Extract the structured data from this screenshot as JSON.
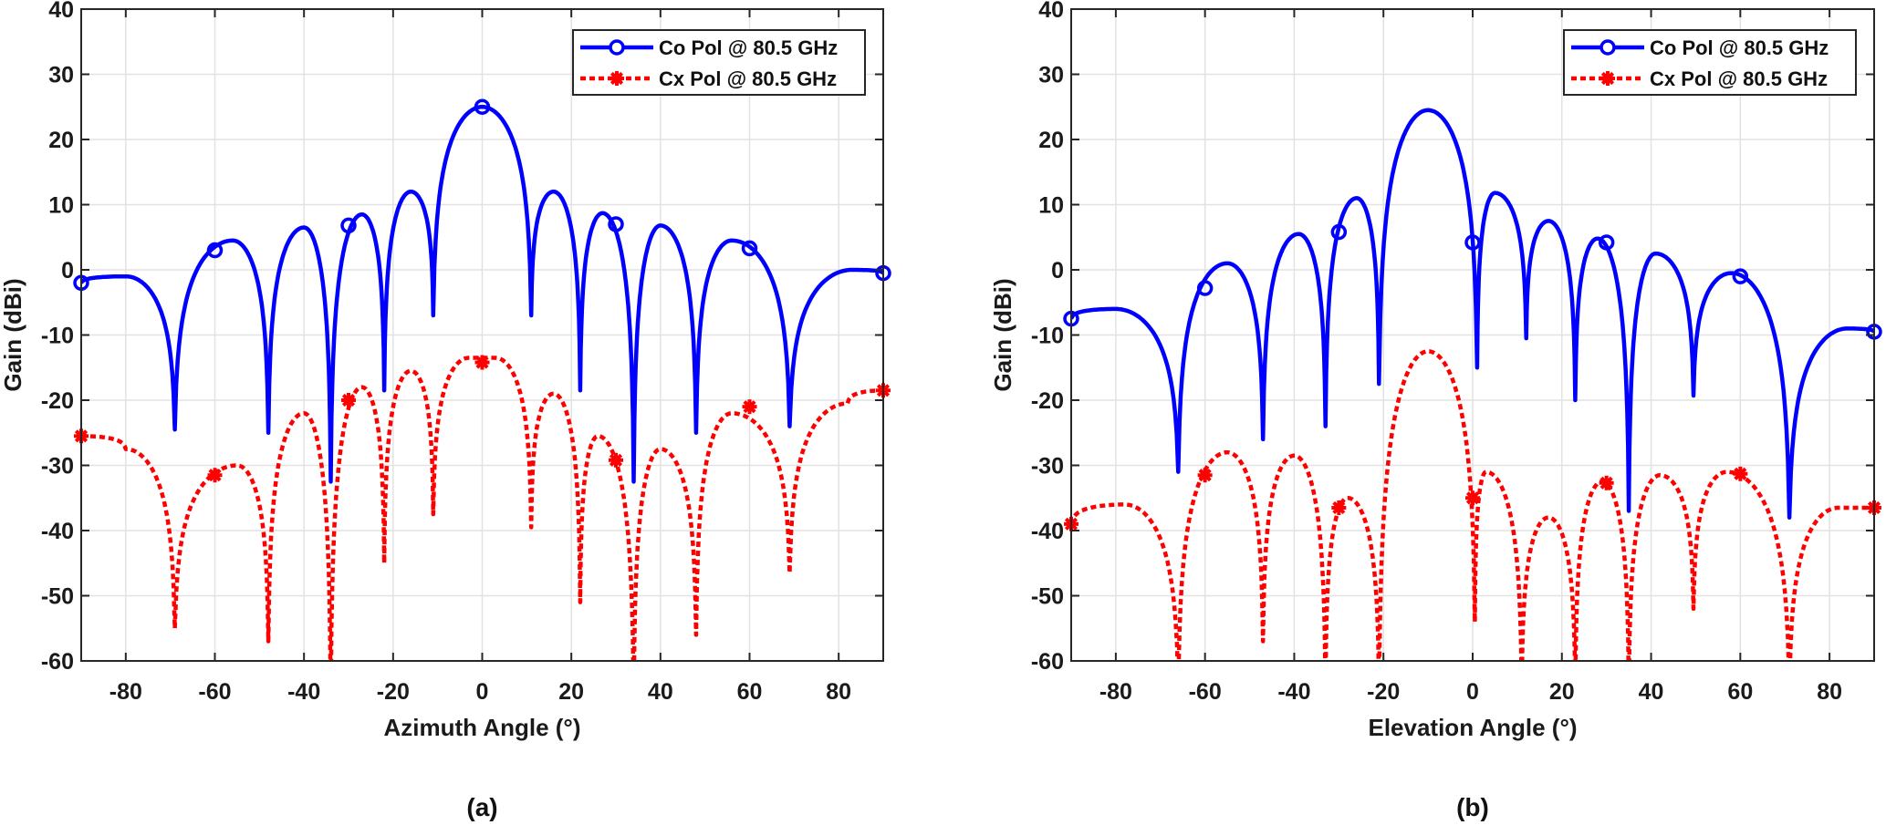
{
  "colors": {
    "co": "#0000ff",
    "cx": "#ff0000",
    "grid": "#e2e2e2",
    "axis": "#262626"
  },
  "chart_data": [
    {
      "type": "line",
      "panel_label": "(a)",
      "xlabel": "Azimuth Angle (°)",
      "ylabel": "Gain (dBi)",
      "xlim": [
        -90,
        90
      ],
      "ylim": [
        -60,
        40
      ],
      "xticks": [
        -80,
        -60,
        -40,
        -20,
        0,
        20,
        40,
        60,
        80
      ],
      "yticks": [
        -60,
        -50,
        -40,
        -30,
        -20,
        -10,
        0,
        10,
        20,
        30,
        40
      ],
      "grid": true,
      "legend_position": "top-right",
      "series": [
        {
          "name": "Co Pol @ 80.5 GHz",
          "style": "solid",
          "marker": "circle",
          "x": [
            -90,
            -80,
            -69,
            -56,
            -48,
            -40,
            -34,
            -27,
            -22,
            -16,
            -11,
            0,
            11,
            16,
            22,
            27,
            34,
            40,
            48,
            56,
            69,
            83,
            90
          ],
          "y": [
            -2,
            -1,
            -24.5,
            4.5,
            -25,
            6.5,
            -32.5,
            8.5,
            -18.5,
            12,
            -7,
            25,
            -7,
            12,
            -18.5,
            8.7,
            -32.5,
            6.8,
            -25,
            4.5,
            -24,
            0,
            -0.5
          ],
          "marker_x": [
            -90,
            -60,
            -30,
            0,
            30,
            60,
            90
          ],
          "marker_y": [
            -2,
            3,
            6.8,
            25,
            7,
            3.3,
            -0.5
          ]
        },
        {
          "name": "Cx Pol @ 80.5 GHz",
          "style": "dotted",
          "marker": "asterisk",
          "x": [
            -90,
            -80,
            -69,
            -55,
            -48,
            -40,
            -34,
            -27,
            -22,
            -16,
            -11,
            -3,
            3,
            11,
            16,
            22,
            26,
            34,
            40,
            48,
            56,
            69,
            82,
            90
          ],
          "y": [
            -25.5,
            -27.5,
            -55,
            -30,
            -57,
            -22,
            -66,
            -18,
            -45,
            -15.5,
            -37.5,
            -13.5,
            -13.5,
            -39.5,
            -19,
            -51,
            -25.5,
            -66,
            -27.5,
            -56,
            -22,
            -46.5,
            -20.5,
            -18.5
          ],
          "marker_x": [
            -90,
            -60,
            -30,
            0,
            30,
            60,
            90
          ],
          "marker_y": [
            -25.5,
            -31.5,
            -20,
            -14.2,
            -29.2,
            -21,
            -18.5
          ]
        }
      ]
    },
    {
      "type": "line",
      "panel_label": "(b)",
      "xlabel": "Elevation Angle (°)",
      "ylabel": "Gain (dBi)",
      "xlim": [
        -90,
        90
      ],
      "ylim": [
        -60,
        40
      ],
      "xticks": [
        -80,
        -60,
        -40,
        -20,
        0,
        20,
        40,
        60,
        80
      ],
      "yticks": [
        -60,
        -50,
        -40,
        -30,
        -20,
        -10,
        0,
        10,
        20,
        30,
        40
      ],
      "grid": true,
      "legend_position": "top-right",
      "series": [
        {
          "name": "Co Pol @ 80.5 GHz",
          "style": "solid",
          "marker": "circle",
          "x": [
            -90,
            -80,
            -66,
            -55,
            -47,
            -39,
            -33,
            -26,
            -21,
            -10,
            1,
            5,
            12,
            17,
            23,
            28,
            35,
            41,
            49.5,
            58,
            71,
            84,
            90
          ],
          "y": [
            -7.5,
            -6,
            -31,
            1,
            -26,
            5.5,
            -24,
            11,
            -17.5,
            24.5,
            -15,
            11.8,
            -10.5,
            7.5,
            -20,
            4.8,
            -37,
            2.5,
            -19.3,
            -0.5,
            -38,
            -9,
            -9.5
          ],
          "marker_x": [
            -90,
            -60,
            -30,
            0,
            30,
            60,
            90
          ],
          "marker_y": [
            -7.5,
            -2.8,
            5.8,
            4.2,
            4.2,
            -1,
            -9.5
          ]
        },
        {
          "name": "Cx Pol @ 80.5 GHz",
          "style": "dotted",
          "marker": "asterisk",
          "x": [
            -90,
            -78,
            -66,
            -55,
            -47,
            -40,
            -33,
            -28,
            -21,
            -10,
            0.5,
            3,
            11,
            17,
            23,
            29,
            35,
            42,
            49.5,
            57,
            71,
            82,
            90
          ],
          "y": [
            -39,
            -36,
            -64,
            -28,
            -57,
            -28.5,
            -64,
            -35,
            -64,
            -12.5,
            -54,
            -31,
            -64,
            -38,
            -64,
            -32.5,
            -64,
            -31.5,
            -52,
            -31,
            -64,
            -36.5,
            -36.5
          ],
          "marker_x": [
            -90,
            -60,
            -30,
            0,
            30,
            60,
            90
          ],
          "marker_y": [
            -39,
            -31.5,
            -36.5,
            -35,
            -32.7,
            -31.3,
            -36.5
          ]
        }
      ]
    }
  ]
}
